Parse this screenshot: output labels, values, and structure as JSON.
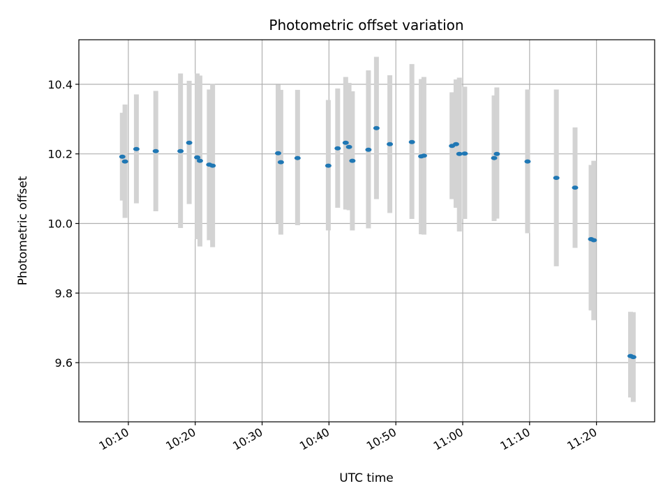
{
  "chart_data": {
    "type": "scatter",
    "title": "Photometric offset variation",
    "xlabel": "UTC time",
    "ylabel": "Photometric offset",
    "x_unit": "minutes",
    "xlim": [
      602.6,
      688.7
    ],
    "ylim": [
      9.43,
      10.528
    ],
    "grid": true,
    "x_ticks": [
      {
        "value": 610,
        "label": "10:10"
      },
      {
        "value": 620,
        "label": "10:20"
      },
      {
        "value": 630,
        "label": "10:30"
      },
      {
        "value": 640,
        "label": "10:40"
      },
      {
        "value": 650,
        "label": "10:50"
      },
      {
        "value": 660,
        "label": "11:00"
      },
      {
        "value": 670,
        "label": "11:10"
      },
      {
        "value": 680,
        "label": "11:20"
      }
    ],
    "y_ticks": [
      {
        "value": 9.6,
        "label": "9.6"
      },
      {
        "value": 9.8,
        "label": "9.8"
      },
      {
        "value": 10.0,
        "label": "10.0"
      },
      {
        "value": 10.2,
        "label": "10.2"
      },
      {
        "value": 10.4,
        "label": "10.4"
      }
    ],
    "series": [
      {
        "point_color": "#1f77b4",
        "errorbar_color": "#d3d3d3",
        "points": [
          {
            "x": "10:09:06",
            "y": 10.192,
            "ylow": 10.066,
            "yhigh": 10.318
          },
          {
            "x": "10:09:30",
            "y": 10.178,
            "ylow": 10.016,
            "yhigh": 10.342
          },
          {
            "x": "10:11:12",
            "y": 10.214,
            "ylow": 10.058,
            "yhigh": 10.371
          },
          {
            "x": "10:14:06",
            "y": 10.208,
            "ylow": 10.035,
            "yhigh": 10.381
          },
          {
            "x": "10:17:48",
            "y": 10.208,
            "ylow": 9.987,
            "yhigh": 10.431
          },
          {
            "x": "10:19:06",
            "y": 10.232,
            "ylow": 10.056,
            "yhigh": 10.41
          },
          {
            "x": "10:20:18",
            "y": 10.19,
            "ylow": 9.955,
            "yhigh": 10.431
          },
          {
            "x": "10:20:42",
            "y": 10.18,
            "ylow": 9.934,
            "yhigh": 10.425
          },
          {
            "x": "10:22:06",
            "y": 10.169,
            "ylow": 9.952,
            "yhigh": 10.385
          },
          {
            "x": "10:22:36",
            "y": 10.166,
            "ylow": 9.932,
            "yhigh": 10.401
          },
          {
            "x": "10:32:24",
            "y": 10.202,
            "ylow": 10.001,
            "yhigh": 10.399
          },
          {
            "x": "10:32:48",
            "y": 10.176,
            "ylow": 9.968,
            "yhigh": 10.384
          },
          {
            "x": "10:35:18",
            "y": 10.188,
            "ylow": 9.995,
            "yhigh": 10.384
          },
          {
            "x": "10:39:54",
            "y": 10.166,
            "ylow": 9.98,
            "yhigh": 10.355
          },
          {
            "x": "10:41:18",
            "y": 10.216,
            "ylow": 10.045,
            "yhigh": 10.388
          },
          {
            "x": "10:42:30",
            "y": 10.232,
            "ylow": 10.04,
            "yhigh": 10.421
          },
          {
            "x": "10:43:00",
            "y": 10.22,
            "ylow": 10.038,
            "yhigh": 10.404
          },
          {
            "x": "10:43:30",
            "y": 10.18,
            "ylow": 9.98,
            "yhigh": 10.38
          },
          {
            "x": "10:45:54",
            "y": 10.212,
            "ylow": 9.986,
            "yhigh": 10.44
          },
          {
            "x": "10:47:06",
            "y": 10.274,
            "ylow": 10.07,
            "yhigh": 10.479
          },
          {
            "x": "10:49:06",
            "y": 10.228,
            "ylow": 10.03,
            "yhigh": 10.426
          },
          {
            "x": "10:52:24",
            "y": 10.234,
            "ylow": 10.013,
            "yhigh": 10.458
          },
          {
            "x": "10:53:48",
            "y": 10.193,
            "ylow": 9.969,
            "yhigh": 10.415
          },
          {
            "x": "10:54:12",
            "y": 10.195,
            "ylow": 9.968,
            "yhigh": 10.421
          },
          {
            "x": "10:58:24",
            "y": 10.223,
            "ylow": 10.07,
            "yhigh": 10.377
          },
          {
            "x": "10:59:00",
            "y": 10.228,
            "ylow": 10.045,
            "yhigh": 10.414
          },
          {
            "x": "10:59:30",
            "y": 10.2,
            "ylow": 9.977,
            "yhigh": 10.419
          },
          {
            "x": "11:00:18",
            "y": 10.201,
            "ylow": 10.013,
            "yhigh": 10.393
          },
          {
            "x": "11:04:42",
            "y": 10.188,
            "ylow": 10.007,
            "yhigh": 10.368
          },
          {
            "x": "11:05:06",
            "y": 10.2,
            "ylow": 10.014,
            "yhigh": 10.391
          },
          {
            "x": "11:09:42",
            "y": 10.178,
            "ylow": 9.972,
            "yhigh": 10.385
          },
          {
            "x": "11:14:00",
            "y": 10.131,
            "ylow": 9.877,
            "yhigh": 10.385
          },
          {
            "x": "11:16:48",
            "y": 10.103,
            "ylow": 9.93,
            "yhigh": 10.276
          },
          {
            "x": "11:19:12",
            "y": 9.955,
            "ylow": 9.75,
            "yhigh": 10.168
          },
          {
            "x": "11:19:36",
            "y": 9.952,
            "ylow": 9.722,
            "yhigh": 10.18
          },
          {
            "x": "11:25:06",
            "y": 9.619,
            "ylow": 9.5,
            "yhigh": 9.746
          },
          {
            "x": "11:25:30",
            "y": 9.616,
            "ylow": 9.487,
            "yhigh": 9.745
          }
        ]
      }
    ]
  }
}
